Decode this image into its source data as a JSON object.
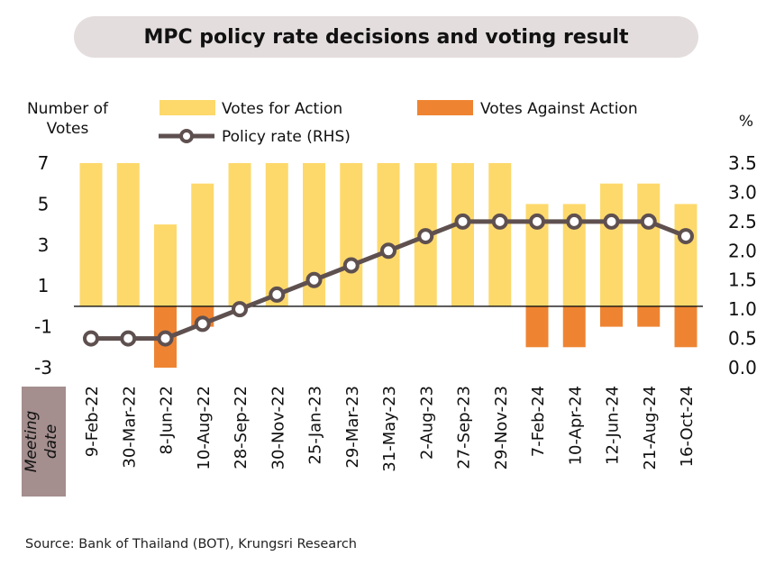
{
  "chart_data": {
    "type": "bar+line",
    "title": "MPC policy rate decisions and voting result",
    "categories": [
      "9-Feb-22",
      "30-Mar-22",
      "8-Jun-22",
      "10-Aug-22",
      "28-Sep-22",
      "30-Nov-22",
      "25-Jan-23",
      "29-Mar-23",
      "31-May-23",
      "2-Aug-23",
      "27-Sep-23",
      "29-Nov-23",
      "7-Feb-24",
      "10-Apr-24",
      "12-Jun-24",
      "21-Aug-24",
      "16-Oct-24"
    ],
    "series": [
      {
        "name": "Votes for Action",
        "type": "bar",
        "axis": "left",
        "color": "#fdd96c",
        "values": [
          7,
          7,
          4,
          6,
          7,
          7,
          7,
          7,
          7,
          7,
          7,
          7,
          5,
          5,
          6,
          6,
          5
        ]
      },
      {
        "name": "Votes Against Action",
        "type": "bar",
        "axis": "left",
        "color": "#ee8432",
        "values": [
          0,
          0,
          -3,
          -1,
          0,
          0,
          0,
          0,
          0,
          0,
          0,
          0,
          -2,
          -2,
          -1,
          -1,
          -2
        ]
      },
      {
        "name": "Policy rate (RHS)",
        "type": "line",
        "axis": "right",
        "color": "#5f5050",
        "values": [
          0.5,
          0.5,
          0.5,
          0.75,
          1.0,
          1.25,
          1.5,
          1.75,
          2.0,
          2.25,
          2.5,
          2.5,
          2.5,
          2.5,
          2.5,
          2.5,
          2.25
        ]
      }
    ],
    "ylabel_left": "Number of Votes",
    "ylabel_right": "%",
    "yticks_left": [
      7,
      5,
      3,
      1,
      -1,
      -3
    ],
    "yticks_right": [
      "3.5",
      "3.0",
      "2.5",
      "2.0",
      "1.5",
      "1.0",
      "0.5",
      "0.0"
    ],
    "ylim_left": [
      -3,
      7
    ],
    "ylim_right": [
      0,
      3.5
    ],
    "xlabel": "Meeting date",
    "legend": "top",
    "grid": false
  },
  "source": "Source: Bank of Thailand (BOT), Krungsri Research"
}
